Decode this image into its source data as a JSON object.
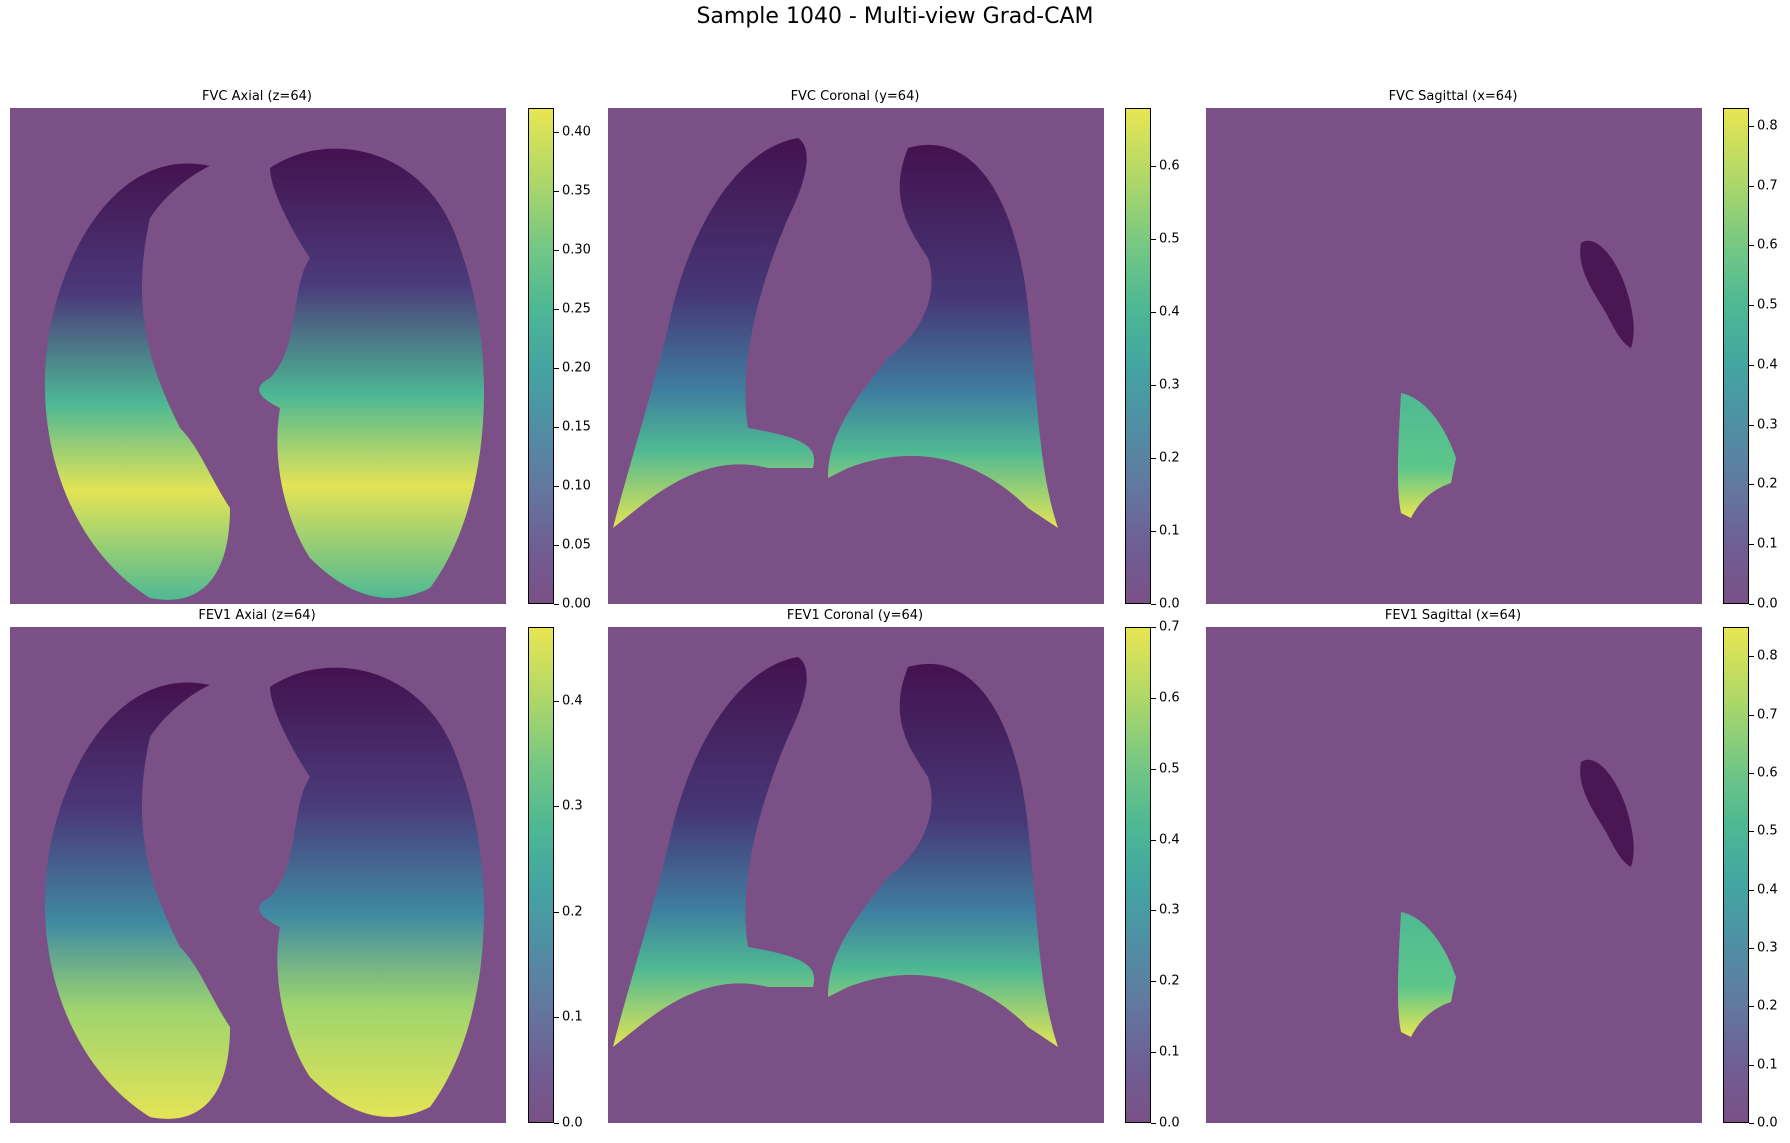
{
  "figure": {
    "title": "Sample 1040 - Multi-view Grad-CAM"
  },
  "panels": [
    {
      "title": "FVC Axial (z=64)",
      "view": "axial",
      "colorbar_ticks": [
        "0.00",
        "0.05",
        "0.10",
        "0.15",
        "0.20",
        "0.25",
        "0.30",
        "0.35",
        "0.40"
      ],
      "colorbar_max": 0.42
    },
    {
      "title": "FVC Coronal (y=64)",
      "view": "coronal",
      "colorbar_ticks": [
        "0.0",
        "0.1",
        "0.2",
        "0.3",
        "0.4",
        "0.5",
        "0.6"
      ],
      "colorbar_max": 0.68
    },
    {
      "title": "FVC Sagittal (x=64)",
      "view": "sagittal",
      "colorbar_ticks": [
        "0.0",
        "0.1",
        "0.2",
        "0.3",
        "0.4",
        "0.5",
        "0.6",
        "0.7",
        "0.8"
      ],
      "colorbar_max": 0.83
    },
    {
      "title": "FEV1 Axial (z=64)",
      "view": "axial",
      "colorbar_ticks": [
        "0.0",
        "0.1",
        "0.2",
        "0.3",
        "0.4"
      ],
      "colorbar_max": 0.47
    },
    {
      "title": "FEV1 Coronal (y=64)",
      "view": "coronal",
      "colorbar_ticks": [
        "0.0",
        "0.1",
        "0.2",
        "0.3",
        "0.4",
        "0.5",
        "0.6",
        "0.7"
      ],
      "colorbar_max": 0.7
    },
    {
      "title": "FEV1 Sagittal (x=64)",
      "view": "sagittal",
      "colorbar_ticks": [
        "0.0",
        "0.1",
        "0.2",
        "0.3",
        "0.4",
        "0.5",
        "0.6",
        "0.7",
        "0.8"
      ],
      "colorbar_max": 0.85
    }
  ],
  "colors": {
    "background_overlay": "#7a5086",
    "colormap": "viridis"
  }
}
